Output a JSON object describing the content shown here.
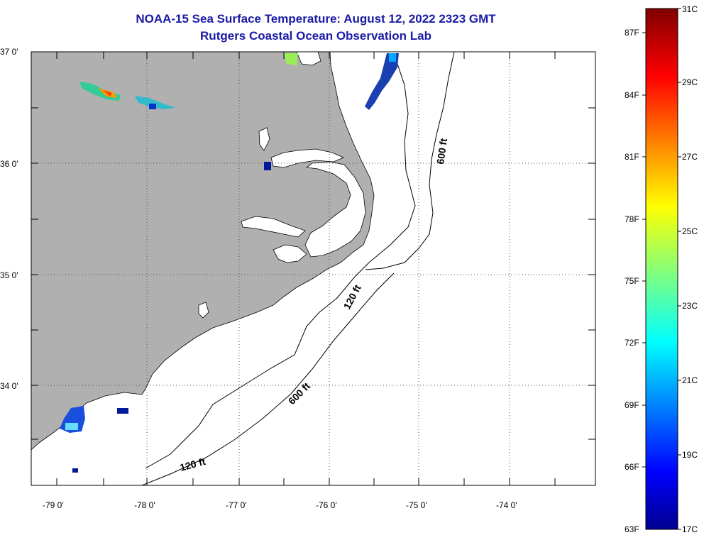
{
  "title": "NOAA-15 Sea Surface Temperature:  August 12, 2022 2323 GMT",
  "subtitle": "Rutgers Coastal Ocean Observation Lab",
  "map": {
    "lat_labels": [
      "37 0'",
      "36 0'",
      "35 0'",
      "34 0'"
    ],
    "lon_labels": [
      "-79 0'",
      "-78 0'",
      "-77 0'",
      "-76 0'",
      "-75 0'",
      "-74 0'"
    ],
    "contours": [
      {
        "label": "600 ft"
      },
      {
        "label": "120 ft"
      },
      {
        "label": "600 ft"
      },
      {
        "label": "120 ft"
      }
    ],
    "colors": {
      "land": "#b0b0b0",
      "ocean": "#ffffff",
      "grid": "#555555"
    }
  },
  "colorbar": {
    "f_labels": [
      "87F",
      "84F",
      "81F",
      "78F",
      "75F",
      "72F",
      "69F",
      "66F",
      "63F"
    ],
    "c_labels": [
      "31C",
      "29C",
      "27C",
      "25C",
      "23C",
      "21C",
      "19C",
      "17C"
    ]
  }
}
